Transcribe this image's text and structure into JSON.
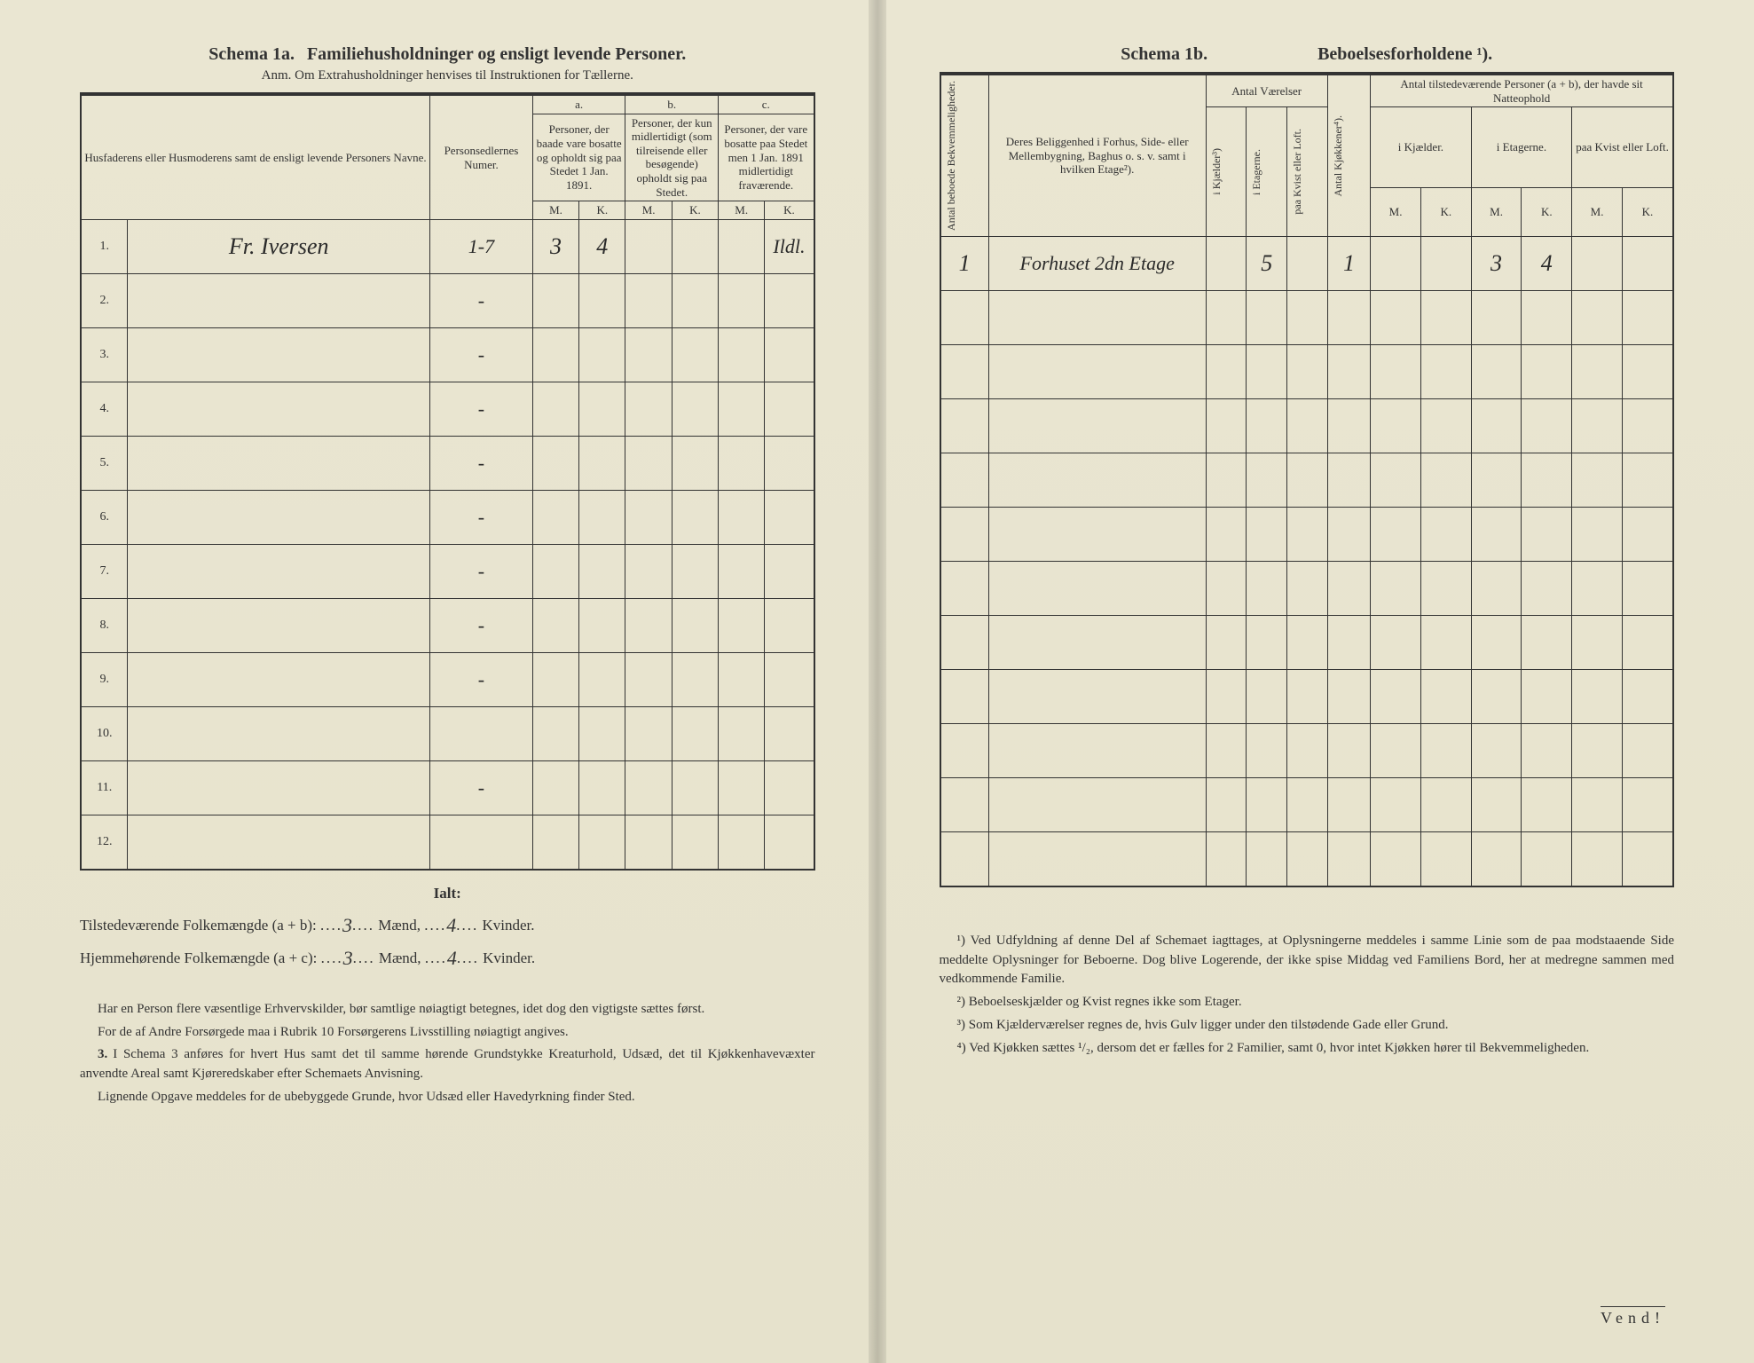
{
  "left": {
    "schema_label": "Schema 1a.",
    "schema_title": "Familiehusholdninger og ensligt levende Personer.",
    "anm": "Anm. Om Extrahusholdninger henvises til Instruktionen for Tællerne.",
    "headers": {
      "col1": "Husfaderens eller Husmoderens samt de ensligt levende Personers Navne.",
      "col2": "Personsedlernes Numer.",
      "group_a_label": "a.",
      "group_a": "Personer, der baade vare bosatte og opholdt sig paa Stedet 1 Jan. 1891.",
      "group_b_label": "b.",
      "group_b": "Personer, der kun midlertidigt (som tilreisende eller besøgende) opholdt sig paa Stedet.",
      "group_c_label": "c.",
      "group_c": "Personer, der vare bosatte paa Stedet men 1 Jan. 1891 midlertidigt fraværende.",
      "M": "M.",
      "K": "K."
    },
    "rows": [
      {
        "n": "1.",
        "name": "Fr. Iversen",
        "num": "1-7",
        "aM": "3",
        "aK": "4",
        "bM": "",
        "bK": "",
        "cM": "",
        "cK": "",
        "note": "Ildl."
      },
      {
        "n": "2.",
        "name": "",
        "num": "-",
        "aM": "",
        "aK": "",
        "bM": "",
        "bK": "",
        "cM": "",
        "cK": "",
        "note": ""
      },
      {
        "n": "3.",
        "name": "",
        "num": "-",
        "aM": "",
        "aK": "",
        "bM": "",
        "bK": "",
        "cM": "",
        "cK": "",
        "note": ""
      },
      {
        "n": "4.",
        "name": "",
        "num": "-",
        "aM": "",
        "aK": "",
        "bM": "",
        "bK": "",
        "cM": "",
        "cK": "",
        "note": ""
      },
      {
        "n": "5.",
        "name": "",
        "num": "-",
        "aM": "",
        "aK": "",
        "bM": "",
        "bK": "",
        "cM": "",
        "cK": "",
        "note": ""
      },
      {
        "n": "6.",
        "name": "",
        "num": "-",
        "aM": "",
        "aK": "",
        "bM": "",
        "bK": "",
        "cM": "",
        "cK": "",
        "note": ""
      },
      {
        "n": "7.",
        "name": "",
        "num": "-",
        "aM": "",
        "aK": "",
        "bM": "",
        "bK": "",
        "cM": "",
        "cK": "",
        "note": ""
      },
      {
        "n": "8.",
        "name": "",
        "num": "-",
        "aM": "",
        "aK": "",
        "bM": "",
        "bK": "",
        "cM": "",
        "cK": "",
        "note": ""
      },
      {
        "n": "9.",
        "name": "",
        "num": "-",
        "aM": "",
        "aK": "",
        "bM": "",
        "bK": "",
        "cM": "",
        "cK": "",
        "note": ""
      },
      {
        "n": "10.",
        "name": "",
        "num": "",
        "aM": "",
        "aK": "",
        "bM": "",
        "bK": "",
        "cM": "",
        "cK": "",
        "note": ""
      },
      {
        "n": "11.",
        "name": "",
        "num": "-",
        "aM": "",
        "aK": "",
        "bM": "",
        "bK": "",
        "cM": "",
        "cK": "",
        "note": ""
      },
      {
        "n": "12.",
        "name": "",
        "num": "",
        "aM": "",
        "aK": "",
        "bM": "",
        "bK": "",
        "cM": "",
        "cK": "",
        "note": ""
      }
    ],
    "totals": {
      "ialt": "Ialt:",
      "line1_label": "Tilstedeværende Folkemængde (a + b):",
      "line1_m": "3",
      "line1_k": "4",
      "line2_label": "Hjemmehørende Folkemængde (a + c):",
      "line2_m": "3",
      "line2_k": "4",
      "maend": "Mænd,",
      "kvinder": "Kvinder."
    },
    "footnotes": [
      "Har en Person flere væsentlige Erhvervskilder, bør samtlige nøiagtigt betegnes, idet dog den vigtigste sættes først.",
      "For de af Andre Forsørgede maa i Rubrik 10 Forsørgerens Livsstilling nøiagtigt angives.",
      "I Schema 3 anføres for hvert Hus samt det til samme hørende Grundstykke Kreaturhold, Udsæd, det til Kjøkkenhavevæxter anvendte Areal samt Kjøreredskaber efter Schemaets Anvisning.",
      "Lignende Opgave meddeles for de ubebyggede Grunde, hvor Udsæd eller Havedyrkning finder Sted."
    ],
    "footnote_num": "3."
  },
  "right": {
    "schema_label": "Schema 1b.",
    "schema_title": "Beboelsesforholdene ¹).",
    "headers": {
      "col1": "Antal beboede Bekvemmeligheder.",
      "col2": "Deres Beliggenhed i Forhus, Side- eller Mellembygning, Baghus o. s. v. samt i hvilken Etage²).",
      "group_rooms": "Antal Værelser",
      "rooms_a": "i Kjælder³)",
      "rooms_b": "i Etagerne.",
      "rooms_c": "paa Kvist eller Loft.",
      "kitchens": "Antal Kjøkkener⁴).",
      "group_persons": "Antal tilstedeværende Personer (a + b), der havde sit Natteophold",
      "per_a": "i Kjælder.",
      "per_b": "i Etagerne.",
      "per_c": "paa Kvist eller Loft.",
      "M": "M.",
      "K": "K."
    },
    "rows": [
      {
        "n": "1",
        "loc": "Forhuset 2dn Etage",
        "rK": "",
        "rE": "5",
        "rL": "",
        "kj": "1",
        "pKM": "",
        "pKK": "",
        "pEM": "3",
        "pEK": "4",
        "pLM": "",
        "pLK": ""
      },
      {
        "n": "",
        "loc": "",
        "rK": "",
        "rE": "",
        "rL": "",
        "kj": "",
        "pKM": "",
        "pKK": "",
        "pEM": "",
        "pEK": "",
        "pLM": "",
        "pLK": ""
      },
      {
        "n": "",
        "loc": "",
        "rK": "",
        "rE": "",
        "rL": "",
        "kj": "",
        "pKM": "",
        "pKK": "",
        "pEM": "",
        "pEK": "",
        "pLM": "",
        "pLK": ""
      },
      {
        "n": "",
        "loc": "",
        "rK": "",
        "rE": "",
        "rL": "",
        "kj": "",
        "pKM": "",
        "pKK": "",
        "pEM": "",
        "pEK": "",
        "pLM": "",
        "pLK": ""
      },
      {
        "n": "",
        "loc": "",
        "rK": "",
        "rE": "",
        "rL": "",
        "kj": "",
        "pKM": "",
        "pKK": "",
        "pEM": "",
        "pEK": "",
        "pLM": "",
        "pLK": ""
      },
      {
        "n": "",
        "loc": "",
        "rK": "",
        "rE": "",
        "rL": "",
        "kj": "",
        "pKM": "",
        "pKK": "",
        "pEM": "",
        "pEK": "",
        "pLM": "",
        "pLK": ""
      },
      {
        "n": "",
        "loc": "",
        "rK": "",
        "rE": "",
        "rL": "",
        "kj": "",
        "pKM": "",
        "pKK": "",
        "pEM": "",
        "pEK": "",
        "pLM": "",
        "pLK": ""
      },
      {
        "n": "",
        "loc": "",
        "rK": "",
        "rE": "",
        "rL": "",
        "kj": "",
        "pKM": "",
        "pKK": "",
        "pEM": "",
        "pEK": "",
        "pLM": "",
        "pLK": ""
      },
      {
        "n": "",
        "loc": "",
        "rK": "",
        "rE": "",
        "rL": "",
        "kj": "",
        "pKM": "",
        "pKK": "",
        "pEM": "",
        "pEK": "",
        "pLM": "",
        "pLK": ""
      },
      {
        "n": "",
        "loc": "",
        "rK": "",
        "rE": "",
        "rL": "",
        "kj": "",
        "pKM": "",
        "pKK": "",
        "pEM": "",
        "pEK": "",
        "pLM": "",
        "pLK": ""
      },
      {
        "n": "",
        "loc": "",
        "rK": "",
        "rE": "",
        "rL": "",
        "kj": "",
        "pKM": "",
        "pKK": "",
        "pEM": "",
        "pEK": "",
        "pLM": "",
        "pLK": ""
      },
      {
        "n": "",
        "loc": "",
        "rK": "",
        "rE": "",
        "rL": "",
        "kj": "",
        "pKM": "",
        "pKK": "",
        "pEM": "",
        "pEK": "",
        "pLM": "",
        "pLK": ""
      }
    ],
    "footnotes": [
      "¹) Ved Udfyldning af denne Del af Schemaet iagttages, at Oplysningerne meddeles i samme Linie som de paa modstaaende Side meddelte Oplysninger for Beboerne. Dog blive Logerende, der ikke spise Middag ved Familiens Bord, her at medregne sammen med vedkommende Familie.",
      "²) Beboelseskjælder og Kvist regnes ikke som Etager.",
      "³) Som Kjælderværelser regnes de, hvis Gulv ligger under den tilstødende Gade eller Grund.",
      "⁴) Ved Kjøkken sættes ¹/₂, dersom det er fælles for 2 Familier, samt 0, hvor intet Kjøkken hører til Bekvemmeligheden."
    ],
    "vend": "Vend!"
  },
  "style": {
    "paper_bg": "#e8e4d0",
    "ink": "#333333",
    "hand_ink": "#2a2a2a"
  }
}
